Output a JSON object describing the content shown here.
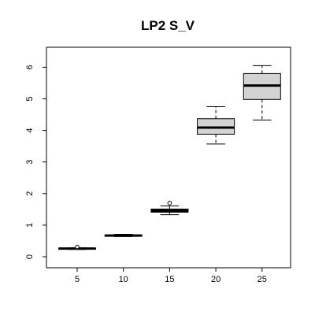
{
  "chart_data": {
    "type": "boxplot",
    "title": "LP2 S_V",
    "xlabel": "",
    "ylabel": "",
    "categories": [
      "5",
      "10",
      "15",
      "20",
      "25"
    ],
    "ylim": [
      0,
      6.5
    ],
    "yticks": [
      0,
      1,
      2,
      3,
      4,
      5,
      6
    ],
    "box_fill": "#d3d3d3",
    "boxes": [
      {
        "category": "5",
        "min": 0.23,
        "q1": 0.24,
        "median": 0.26,
        "q3": 0.27,
        "max": 0.28,
        "outliers": [
          0.31
        ]
      },
      {
        "category": "10",
        "min": 0.64,
        "q1": 0.65,
        "median": 0.67,
        "q3": 0.69,
        "max": 0.71,
        "outliers": []
      },
      {
        "category": "15",
        "min": 1.33,
        "q1": 1.41,
        "median": 1.46,
        "q3": 1.51,
        "max": 1.61,
        "outliers": [
          1.7
        ]
      },
      {
        "category": "20",
        "min": 3.57,
        "q1": 3.88,
        "median": 4.09,
        "q3": 4.37,
        "max": 4.75,
        "outliers": []
      },
      {
        "category": "25",
        "min": 4.33,
        "q1": 4.98,
        "median": 5.42,
        "q3": 5.8,
        "max": 6.05,
        "outliers": []
      }
    ]
  }
}
